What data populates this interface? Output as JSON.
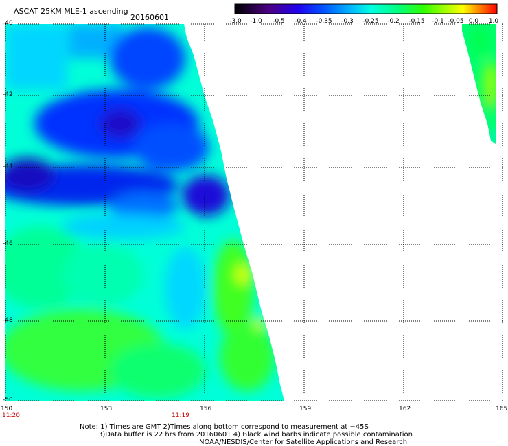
{
  "header": {
    "title": "ASCAT 25KM MLE-1 ascending",
    "date": "20160601"
  },
  "colorbar": {
    "labels": [
      "-3.0",
      "-1.0",
      "-0.5",
      "-0.4",
      "-0.35",
      "-0.3",
      "-0.25",
      "-0.2",
      "-0.15",
      "-0.1",
      "-0.05",
      "0.0",
      "1.0"
    ]
  },
  "map": {
    "lon_labels": [
      "150",
      "153",
      "156",
      "159",
      "162",
      "165"
    ],
    "lat_labels": [
      "-40",
      "-42",
      "-44",
      "-46",
      "-48",
      "-50"
    ],
    "time_labels": [
      "11:20",
      "11:19"
    ],
    "lon_range": [
      150,
      165
    ],
    "lat_range": [
      -50,
      -40
    ],
    "time_label_color": "#cc0000"
  },
  "notes": [
    "Note: 1) Times are GMT 2)Times along bottom correspond to measurement at −45S",
    "3)Data buffer is 22 hrs from 20160601 4) Black wind barbs indicate possible contamination",
    "NOAA/NESDIS/Center for Satellite Applications and Research"
  ]
}
